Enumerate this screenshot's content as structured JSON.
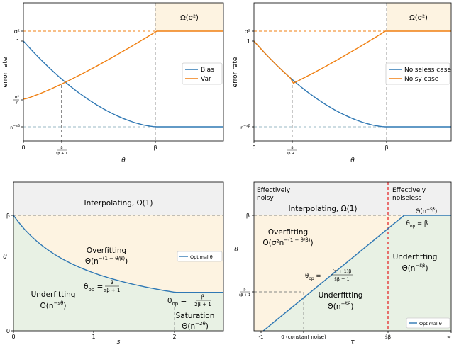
{
  "colors": {
    "blue": "#2f78b4",
    "orange": "#f07f10",
    "shade_orange": "#fdf3e1",
    "shade_green": "#e8f1e4",
    "shade_gray": "#f0f0f0",
    "ref_line": "#9ab8c4",
    "red": "#e41a1c"
  },
  "chart_data": [
    {
      "type": "line",
      "panel": "top-left",
      "xlabel": "θ",
      "ylabel": "error rate",
      "x_ticks": [
        "0",
        "β/(sβ+1)",
        "β"
      ],
      "y_ticks": [
        "σ²",
        "1",
        "σ²/n",
        "n^{-sβ}"
      ],
      "annotations": [
        "Ω(σ²)"
      ],
      "legend": {
        "position": "center-right",
        "entries": [
          "Bias",
          "Var"
        ]
      },
      "series": [
        {
          "name": "Bias",
          "color": "blue",
          "x": [
            0,
            0.25,
            0.5,
            0.75,
            1.0,
            1.25,
            1.5
          ],
          "y": [
            1.0,
            0.68,
            0.46,
            0.31,
            0.2,
            0.2,
            0.2
          ]
        },
        {
          "name": "Var",
          "color": "orange",
          "x": [
            0,
            0.25,
            0.5,
            0.75,
            1.0,
            1.25,
            1.5
          ],
          "y": [
            0.3,
            0.4,
            0.53,
            0.68,
            0.86,
            0.86,
            0.86
          ]
        }
      ]
    },
    {
      "type": "line",
      "panel": "top-right",
      "xlabel": "θ",
      "ylabel": "error rate",
      "x_ticks": [
        "0",
        "β/(sβ+1)",
        "β"
      ],
      "y_ticks": [
        "σ²",
        "1",
        "n^{-sβ}"
      ],
      "annotations": [
        "Ω(σ²)"
      ],
      "legend": {
        "position": "center-right",
        "entries": [
          "Noiseless case",
          "Noisy case"
        ]
      },
      "series": [
        {
          "name": "Noiseless case",
          "color": "blue",
          "x": [
            0,
            0.25,
            0.5,
            0.75,
            1.0,
            1.25,
            1.5
          ],
          "y": [
            1.0,
            0.68,
            0.46,
            0.31,
            0.2,
            0.2,
            0.2
          ]
        },
        {
          "name": "Noisy case",
          "color": "orange",
          "x": [
            0,
            0.25,
            0.5,
            0.75,
            1.0,
            1.25,
            1.5
          ],
          "y": [
            1.0,
            0.68,
            0.53,
            0.68,
            0.86,
            0.86,
            0.86
          ]
        }
      ]
    },
    {
      "type": "line",
      "panel": "bottom-left",
      "xlabel": "s",
      "ylabel": "θ",
      "x_ticks": [
        "0",
        "1",
        "2"
      ],
      "y_ticks": [
        "0",
        "β"
      ],
      "legend": {
        "position": "center-right",
        "entries": [
          "Optimal θ"
        ]
      },
      "regions": {
        "interpolating": "Interpolating, Ω(1)",
        "overfitting": "Overfitting",
        "overfitting_rate": "Θ(n^{−(1−θ/β)})",
        "underfitting": "Underfitting",
        "underfitting_rate": "Θ(n^{−sθ})",
        "saturation": "Saturation",
        "saturation_rate": "Θ(n^{−2θ})",
        "theta_op_1": "θ_op = β/(sβ+1)",
        "theta_op_2": "θ_op = β/(2β+1)"
      },
      "series": [
        {
          "name": "Optimal θ",
          "color": "blue",
          "x": [
            0,
            0.25,
            0.5,
            0.75,
            1.0,
            1.5,
            2.0,
            2.5
          ],
          "y": [
            1.0,
            0.8,
            0.67,
            0.57,
            0.5,
            0.4,
            0.33,
            0.33
          ]
        }
      ]
    },
    {
      "type": "line",
      "panel": "bottom-right",
      "xlabel": "τ",
      "ylabel": "θ",
      "x_ticks": [
        "-1",
        "0 (constant noise)",
        "s̃β",
        "∞"
      ],
      "y_ticks": [
        "β",
        "β/(s̃β+1)"
      ],
      "legend": {
        "position": "bottom-right",
        "entries": [
          "Optimal θ"
        ]
      },
      "regions": {
        "effectively_noisy": "Effectively noisy",
        "effectively_noiseless": "Effectively noiseless",
        "interpolating": "Interpolating, Ω(1)",
        "overfitting": "Overfitting",
        "overfitting_rate": "Θ(σ²n^{−(1−θ/β)})",
        "underfitting_left": "Underfitting",
        "underfitting_left_rate": "Θ(n^{−s̃θ})",
        "underfitting_right": "Underfitting",
        "underfitting_right_rate": "Θ(n^{−s̃β})",
        "noiseless_rate": "Θ(n^{−s̃β})",
        "theta_op_1": "θ_op = (τ+1)β/(s̃β+1)",
        "theta_op_2": "θ_op = β"
      },
      "series": [
        {
          "name": "Optimal θ",
          "color": "blue",
          "x": [
            -1,
            0,
            1,
            2,
            3
          ],
          "y": [
            0,
            0.333,
            0.667,
            1.0,
            1.0
          ]
        }
      ]
    }
  ]
}
